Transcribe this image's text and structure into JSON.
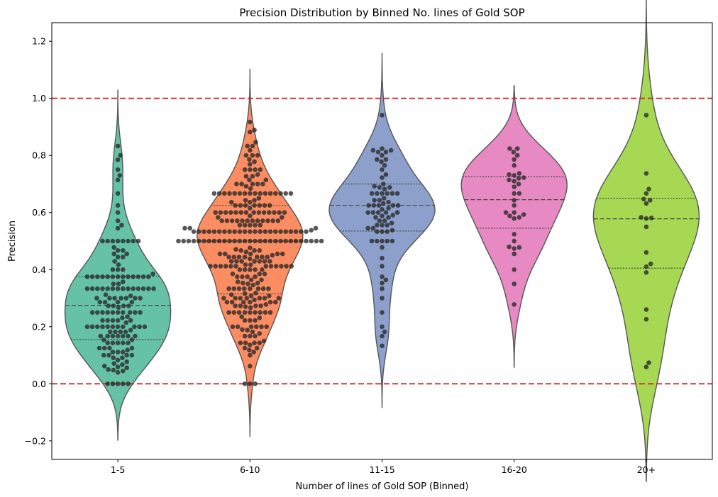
{
  "chart_data": {
    "type": "violin",
    "title": "Precision Distribution by Binned No. lines of Gold SOP",
    "xlabel": "Number of lines of Gold SOP (Binned)",
    "ylabel": "Precision",
    "ylim": [
      -0.265,
      1.265
    ],
    "yticks": [
      -0.2,
      0.0,
      0.2,
      0.4,
      0.6,
      0.8,
      1.0,
      1.2
    ],
    "ytick_labels": [
      "−0.2",
      "0.0",
      "0.2",
      "0.4",
      "0.6",
      "0.8",
      "1.0",
      "1.2"
    ],
    "reference_lines": [
      {
        "y": 1.0,
        "color": "#d62728",
        "style": "dashed"
      },
      {
        "y": 0.0,
        "color": "#d62728",
        "style": "dashed"
      }
    ],
    "categories": [
      "1-5",
      "6-10",
      "11-15",
      "16-20",
      "20+"
    ],
    "series": [
      {
        "category": "1-5",
        "color": "#66c2a5",
        "quartiles": [
          0.155,
          0.275,
          0.375
        ],
        "points": [
          0.833,
          0.8,
          0.785,
          0.75,
          0.73,
          0.714,
          0.667,
          0.625,
          0.6,
          0.571,
          0.556,
          0.545,
          0.5,
          0.5,
          0.5,
          0.5,
          0.5,
          0.5,
          0.5,
          0.5,
          0.478,
          0.467,
          0.467,
          0.455,
          0.455,
          0.444,
          0.444,
          0.429,
          0.417,
          0.4,
          0.4,
          0.4,
          0.385,
          0.375,
          0.375,
          0.375,
          0.375,
          0.375,
          0.375,
          0.375,
          0.375,
          0.375,
          0.375,
          0.375,
          0.375,
          0.375,
          0.357,
          0.35,
          0.35,
          0.333,
          0.333,
          0.333,
          0.333,
          0.333,
          0.333,
          0.333,
          0.333,
          0.333,
          0.333,
          0.333,
          0.333,
          0.333,
          0.333,
          0.312,
          0.308,
          0.3,
          0.3,
          0.3,
          0.3,
          0.3,
          0.3,
          0.3,
          0.286,
          0.286,
          0.286,
          0.286,
          0.273,
          0.273,
          0.273,
          0.273,
          0.267,
          0.25,
          0.25,
          0.25,
          0.25,
          0.25,
          0.25,
          0.25,
          0.25,
          0.25,
          0.25,
          0.235,
          0.231,
          0.222,
          0.222,
          0.222,
          0.222,
          0.222,
          0.214,
          0.2,
          0.2,
          0.2,
          0.2,
          0.2,
          0.2,
          0.2,
          0.2,
          0.2,
          0.2,
          0.2,
          0.188,
          0.182,
          0.182,
          0.182,
          0.182,
          0.167,
          0.167,
          0.167,
          0.167,
          0.167,
          0.167,
          0.167,
          0.154,
          0.154,
          0.143,
          0.143,
          0.143,
          0.143,
          0.143,
          0.125,
          0.125,
          0.125,
          0.125,
          0.118,
          0.111,
          0.111,
          0.111,
          0.1,
          0.1,
          0.1,
          0.1,
          0.091,
          0.091,
          0.083,
          0.077,
          0.071,
          0.067,
          0.062,
          0.059,
          0.056,
          0.05,
          0.048,
          0.045,
          0.04,
          0.0,
          0.0,
          0.0,
          0.0,
          0.0
        ]
      },
      {
        "category": "6-10",
        "color": "#fc8d62",
        "quartiles": [
          0.315,
          0.5,
          0.625
        ],
        "points": [
          0.917,
          0.889,
          0.882,
          0.846,
          0.833,
          0.833,
          0.818,
          0.8,
          0.8,
          0.8,
          0.786,
          0.778,
          0.769,
          0.75,
          0.75,
          0.75,
          0.75,
          0.733,
          0.727,
          0.727,
          0.714,
          0.714,
          0.7,
          0.7,
          0.7,
          0.7,
          0.7,
          0.692,
          0.684,
          0.667,
          0.667,
          0.667,
          0.667,
          0.667,
          0.667,
          0.667,
          0.667,
          0.667,
          0.667,
          0.667,
          0.667,
          0.667,
          0.667,
          0.667,
          0.667,
          0.65,
          0.643,
          0.643,
          0.636,
          0.636,
          0.625,
          0.625,
          0.625,
          0.625,
          0.625,
          0.625,
          0.625,
          0.615,
          0.6,
          0.6,
          0.6,
          0.6,
          0.6,
          0.6,
          0.6,
          0.6,
          0.6,
          0.6,
          0.6,
          0.6,
          0.6,
          0.6,
          0.588,
          0.583,
          0.583,
          0.571,
          0.571,
          0.571,
          0.571,
          0.571,
          0.571,
          0.571,
          0.571,
          0.571,
          0.571,
          0.571,
          0.571,
          0.556,
          0.556,
          0.556,
          0.556,
          0.556,
          0.545,
          0.545,
          0.545,
          0.538,
          0.533,
          0.533,
          0.533,
          0.533,
          0.533,
          0.533,
          0.533,
          0.533,
          0.533,
          0.533,
          0.533,
          0.533,
          0.533,
          0.533,
          0.533,
          0.533,
          0.533,
          0.533,
          0.533,
          0.533,
          0.533,
          0.533,
          0.533,
          0.5,
          0.5,
          0.5,
          0.5,
          0.5,
          0.5,
          0.5,
          0.5,
          0.5,
          0.5,
          0.5,
          0.5,
          0.5,
          0.5,
          0.5,
          0.5,
          0.5,
          0.5,
          0.5,
          0.5,
          0.5,
          0.5,
          0.5,
          0.5,
          0.5,
          0.5,
          0.5,
          0.5,
          0.5,
          0.476,
          0.471,
          0.467,
          0.467,
          0.467,
          0.462,
          0.455,
          0.455,
          0.455,
          0.455,
          0.455,
          0.45,
          0.444,
          0.444,
          0.444,
          0.444,
          0.444,
          0.444,
          0.444,
          0.438,
          0.429,
          0.429,
          0.429,
          0.429,
          0.429,
          0.429,
          0.429,
          0.417,
          0.417,
          0.412,
          0.412,
          0.412,
          0.412,
          0.412,
          0.412,
          0.412,
          0.412,
          0.412,
          0.412,
          0.412,
          0.412,
          0.4,
          0.4,
          0.4,
          0.4,
          0.4,
          0.385,
          0.385,
          0.385,
          0.375,
          0.375,
          0.375,
          0.375,
          0.364,
          0.364,
          0.357,
          0.353,
          0.353,
          0.35,
          0.346,
          0.333,
          0.333,
          0.333,
          0.333,
          0.333,
          0.333,
          0.333,
          0.333,
          0.318,
          0.316,
          0.312,
          0.308,
          0.308,
          0.3,
          0.3,
          0.3,
          0.3,
          0.3,
          0.3,
          0.3,
          0.294,
          0.286,
          0.286,
          0.286,
          0.286,
          0.286,
          0.286,
          0.278,
          0.273,
          0.273,
          0.273,
          0.273,
          0.27,
          0.267,
          0.25,
          0.25,
          0.25,
          0.25,
          0.25,
          0.25,
          0.25,
          0.25,
          0.25,
          0.235,
          0.231,
          0.222,
          0.222,
          0.222,
          0.2,
          0.2,
          0.2,
          0.2,
          0.2,
          0.2,
          0.19,
          0.188,
          0.182,
          0.176,
          0.167,
          0.167,
          0.167,
          0.15,
          0.143,
          0.143,
          0.143,
          0.143,
          0.136,
          0.125,
          0.125,
          0.118,
          0.111,
          0.1,
          0.062,
          0.0,
          0.0,
          0.0
        ]
      },
      {
        "category": "11-15",
        "color": "#8da0cb",
        "quartiles": [
          0.535,
          0.625,
          0.7
        ],
        "points": [
          0.941,
          0.824,
          0.818,
          0.818,
          0.812,
          0.812,
          0.8,
          0.786,
          0.786,
          0.778,
          0.765,
          0.75,
          0.733,
          0.722,
          0.7,
          0.692,
          0.688,
          0.688,
          0.682,
          0.667,
          0.667,
          0.667,
          0.667,
          0.667,
          0.667,
          0.65,
          0.643,
          0.643,
          0.636,
          0.632,
          0.625,
          0.625,
          0.625,
          0.625,
          0.625,
          0.615,
          0.611,
          0.6,
          0.6,
          0.6,
          0.6,
          0.6,
          0.591,
          0.588,
          0.583,
          0.583,
          0.571,
          0.571,
          0.563,
          0.556,
          0.556,
          0.556,
          0.545,
          0.545,
          0.538,
          0.533,
          0.533,
          0.533,
          0.5,
          0.5,
          0.5,
          0.5,
          0.5,
          0.478,
          0.44,
          0.412,
          0.375,
          0.364,
          0.353,
          0.333,
          0.3,
          0.25,
          0.2,
          0.182,
          0.167,
          0.133
        ]
      },
      {
        "category": "16-20",
        "color": "#e78ac3",
        "quartiles": [
          0.545,
          0.645,
          0.725
        ],
        "points": [
          0.824,
          0.824,
          0.812,
          0.8,
          0.786,
          0.765,
          0.737,
          0.733,
          0.73,
          0.722,
          0.72,
          0.714,
          0.71,
          0.7,
          0.69,
          0.667,
          0.667,
          0.643,
          0.625,
          0.6,
          0.6,
          0.593,
          0.588,
          0.583,
          0.579,
          0.524,
          0.5,
          0.48,
          0.478,
          0.474,
          0.455,
          0.4,
          0.35,
          0.278
        ]
      },
      {
        "category": "20+",
        "color": "#a6d854",
        "quartiles": [
          0.405,
          0.578,
          0.65
        ],
        "points": [
          0.941,
          0.737,
          0.682,
          0.667,
          0.647,
          0.643,
          0.632,
          0.583,
          0.581,
          0.579,
          0.55,
          0.46,
          0.42,
          0.41,
          0.39,
          0.26,
          0.226,
          0.074,
          0.059
        ]
      }
    ]
  }
}
